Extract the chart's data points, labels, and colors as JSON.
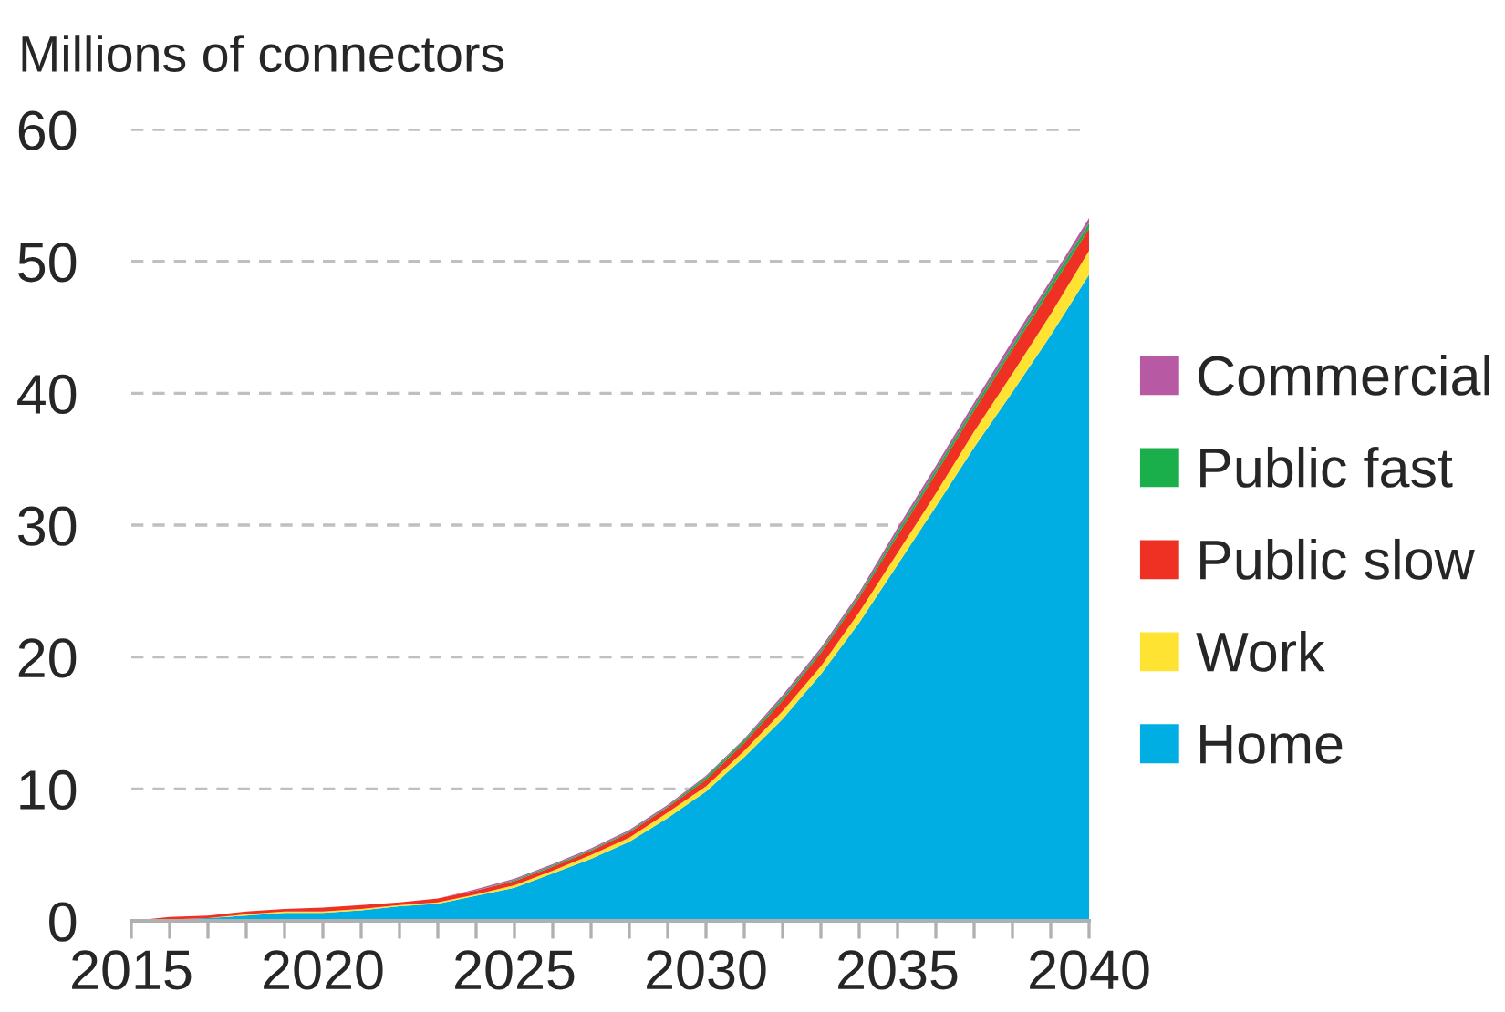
{
  "chart_data": {
    "type": "area",
    "stacked": true,
    "ylabel": "Millions of connectors",
    "x": [
      2015,
      2016,
      2017,
      2018,
      2019,
      2020,
      2021,
      2022,
      2023,
      2024,
      2025,
      2026,
      2027,
      2028,
      2029,
      2030,
      2031,
      2032,
      2033,
      2034,
      2035,
      2036,
      2037,
      2038,
      2039,
      2040
    ],
    "series": [
      {
        "name": "Home",
        "color": "#00aee4",
        "values": [
          0,
          0.1,
          0.2,
          0.4,
          0.6,
          0.6,
          0.8,
          1.1,
          1.3,
          1.9,
          2.5,
          3.6,
          4.7,
          6.0,
          7.8,
          9.8,
          12.4,
          15.3,
          18.7,
          22.6,
          27.0,
          31.4,
          35.9,
          40.1,
          44.4,
          49.0
        ]
      },
      {
        "name": "Work",
        "color": "#ffe333",
        "values": [
          0,
          0,
          0,
          0.1,
          0.1,
          0.1,
          0.1,
          0.1,
          0.1,
          0.1,
          0.2,
          0.2,
          0.3,
          0.3,
          0.4,
          0.4,
          0.5,
          0.6,
          0.6,
          0.8,
          0.9,
          1.0,
          1.2,
          1.4,
          1.6,
          1.8
        ]
      },
      {
        "name": "Public slow",
        "color": "#ef3124",
        "values": [
          0,
          0.2,
          0.2,
          0.2,
          0.2,
          0.3,
          0.3,
          0.2,
          0.3,
          0.3,
          0.3,
          0.3,
          0.3,
          0.4,
          0.4,
          0.5,
          0.6,
          0.8,
          1.0,
          1.1,
          1.3,
          1.5,
          1.6,
          1.8,
          1.9,
          1.7
        ]
      },
      {
        "name": "Public fast",
        "color": "#1aaf4b",
        "values": [
          0,
          0,
          0,
          0,
          0,
          0,
          0,
          0,
          0,
          0,
          0.1,
          0.1,
          0.1,
          0.1,
          0.1,
          0.2,
          0.2,
          0.2,
          0.2,
          0.2,
          0.3,
          0.3,
          0.3,
          0.3,
          0.4,
          0.4
        ]
      },
      {
        "name": "Commercial",
        "color": "#b85aa3",
        "values": [
          0,
          0,
          0,
          0,
          0,
          0,
          0,
          0,
          0,
          0.1,
          0.1,
          0.1,
          0.1,
          0.1,
          0.1,
          0.1,
          0.1,
          0.2,
          0.2,
          0.2,
          0.3,
          0.3,
          0.3,
          0.4,
          0.3,
          0.4
        ]
      }
    ],
    "xlim": [
      2015,
      2040
    ],
    "xticks": [
      2015,
      {
        "value": 2016,
        "label": null
      },
      {
        "value": 2017,
        "label": null
      },
      {
        "value": 2018,
        "label": null
      },
      {
        "value": 2019,
        "label": null
      },
      2020,
      {
        "value": 2021,
        "label": null
      },
      {
        "value": 2022,
        "label": null
      },
      {
        "value": 2023,
        "label": null
      },
      {
        "value": 2024,
        "label": null
      },
      2025,
      {
        "value": 2026,
        "label": null
      },
      {
        "value": 2027,
        "label": null
      },
      {
        "value": 2028,
        "label": null
      },
      {
        "value": 2029,
        "label": null
      },
      2030,
      {
        "value": 2031,
        "label": null
      },
      {
        "value": 2032,
        "label": null
      },
      {
        "value": 2033,
        "label": null
      },
      {
        "value": 2034,
        "label": null
      },
      2035,
      {
        "value": 2036,
        "label": null
      },
      {
        "value": 2037,
        "label": null
      },
      {
        "value": 2038,
        "label": null
      },
      {
        "value": 2039,
        "label": null
      },
      2040
    ],
    "ylim": [
      0,
      60
    ],
    "yticks": [
      0,
      10,
      20,
      30,
      40,
      50,
      60
    ],
    "grid": "y",
    "legend": "right"
  }
}
